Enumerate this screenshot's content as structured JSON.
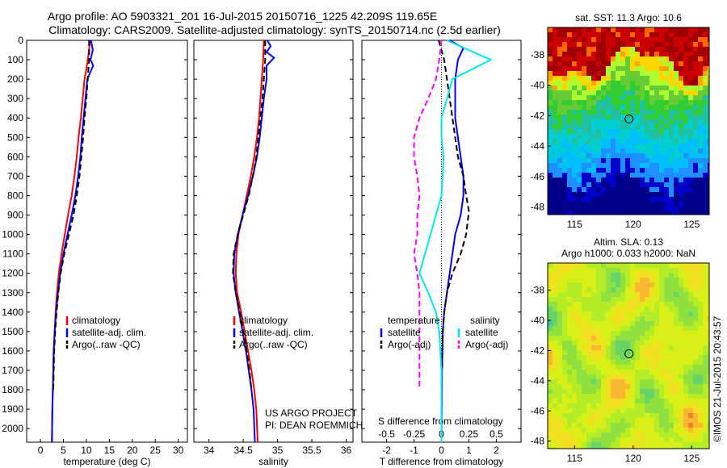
{
  "header": {
    "line1": "Argo profile: AO 5903321_201 16-Jul-2015 20150716_1225 42.209S 119.65E",
    "line2": "Climatology: CARS2009. Satellite-adjusted climatology: synTS_20150714.nc (2.5d earlier)"
  },
  "credits": {
    "project": "US ARGO PROJECT",
    "pi": "PI: DEAN ROEMMICH"
  },
  "stamp": "©IMOS 21-Jul-2015 20:43:57",
  "colors": {
    "climatology": "#ff0000",
    "satellite": "#0000ff",
    "argo": "#000000",
    "sat_salinity": "#00e5ee",
    "argo_salinity": "#ff00ff"
  },
  "chart_data": [
    {
      "type": "line",
      "xlabel": "temperature (deg C)",
      "xticks": [
        0,
        5,
        10,
        15,
        20,
        25,
        30
      ],
      "xlim": [
        -3,
        32
      ],
      "ylabel": "",
      "yticks": [
        0,
        100,
        200,
        300,
        400,
        500,
        600,
        700,
        800,
        900,
        1000,
        1100,
        1200,
        1300,
        1400,
        1500,
        1600,
        1700,
        1800,
        1900,
        2000
      ],
      "ylim": [
        2070,
        0
      ],
      "legend": [
        "climatology",
        "satellite-adj. clim.",
        "Argo(..raw -QC)"
      ],
      "series": [
        {
          "name": "climatology",
          "color": "#ff0000",
          "style": "solid",
          "points": [
            [
              10.8,
              0
            ],
            [
              10.6,
              50
            ],
            [
              10.3,
              100
            ],
            [
              10.0,
              150
            ],
            [
              9.6,
              200
            ],
            [
              9.2,
              300
            ],
            [
              8.8,
              400
            ],
            [
              8.3,
              500
            ],
            [
              7.9,
              600
            ],
            [
              7.4,
              700
            ],
            [
              6.8,
              800
            ],
            [
              6.0,
              900
            ],
            [
              5.3,
              1000
            ],
            [
              4.6,
              1100
            ],
            [
              4.0,
              1200
            ],
            [
              3.6,
              1300
            ],
            [
              3.3,
              1400
            ],
            [
              3.1,
              1500
            ],
            [
              2.9,
              1600
            ],
            [
              2.8,
              1700
            ],
            [
              2.7,
              1800
            ],
            [
              2.6,
              1900
            ],
            [
              2.5,
              2070
            ]
          ]
        },
        {
          "name": "satellite-adj. clim.",
          "color": "#0000ff",
          "style": "solid",
          "points": [
            [
              11.0,
              0
            ],
            [
              11.4,
              50
            ],
            [
              10.9,
              100
            ],
            [
              11.5,
              130
            ],
            [
              10.2,
              200
            ],
            [
              9.8,
              300
            ],
            [
              9.4,
              400
            ],
            [
              9.0,
              500
            ],
            [
              8.7,
              600
            ],
            [
              8.2,
              700
            ],
            [
              7.6,
              800
            ],
            [
              6.8,
              900
            ],
            [
              5.9,
              1000
            ],
            [
              5.0,
              1100
            ],
            [
              4.3,
              1200
            ],
            [
              3.8,
              1300
            ],
            [
              3.4,
              1400
            ],
            [
              3.1,
              1500
            ],
            [
              2.9,
              1600
            ],
            [
              2.8,
              1700
            ],
            [
              2.7,
              1800
            ],
            [
              2.6,
              1900
            ],
            [
              2.5,
              2070
            ]
          ]
        },
        {
          "name": "Argo(..raw -QC)",
          "color": "#000000",
          "style": "dashed",
          "points": [
            [
              10.6,
              0
            ],
            [
              10.6,
              100
            ],
            [
              10.3,
              200
            ],
            [
              10.0,
              300
            ],
            [
              9.6,
              400
            ],
            [
              9.3,
              500
            ],
            [
              8.9,
              600
            ],
            [
              8.5,
              700
            ],
            [
              7.9,
              800
            ],
            [
              7.2,
              900
            ],
            [
              6.2,
              1000
            ],
            [
              5.2,
              1100
            ],
            [
              4.4,
              1200
            ],
            [
              3.9,
              1300
            ],
            [
              3.5,
              1400
            ],
            [
              3.2,
              1500
            ],
            [
              3.0,
              1600
            ],
            [
              2.9,
              1700
            ],
            [
              2.8,
              1800
            ]
          ]
        }
      ]
    },
    {
      "type": "line",
      "xlabel": "salinity",
      "xticks": [
        34,
        34.5,
        35,
        35.5,
        36
      ],
      "xlim": [
        33.78,
        36.1
      ],
      "yticks": [
        0,
        100,
        200,
        300,
        400,
        500,
        600,
        700,
        800,
        900,
        1000,
        1100,
        1200,
        1300,
        1400,
        1500,
        1600,
        1700,
        1800,
        1900,
        2000
      ],
      "ylim": [
        2070,
        0
      ],
      "legend": [
        "climatology",
        "satellite-adj. clim.",
        "Argo(..raw -QC)"
      ],
      "series": [
        {
          "name": "climatology",
          "color": "#ff0000",
          "style": "solid",
          "points": [
            [
              34.8,
              0
            ],
            [
              34.79,
              100
            ],
            [
              34.77,
              200
            ],
            [
              34.75,
              300
            ],
            [
              34.73,
              400
            ],
            [
              34.7,
              500
            ],
            [
              34.66,
              600
            ],
            [
              34.61,
              700
            ],
            [
              34.55,
              800
            ],
            [
              34.49,
              900
            ],
            [
              34.43,
              1000
            ],
            [
              34.4,
              1100
            ],
            [
              34.39,
              1200
            ],
            [
              34.41,
              1300
            ],
            [
              34.47,
              1400
            ],
            [
              34.52,
              1500
            ],
            [
              34.57,
              1600
            ],
            [
              34.62,
              1700
            ],
            [
              34.66,
              1800
            ],
            [
              34.69,
              1900
            ],
            [
              34.71,
              2070
            ]
          ]
        },
        {
          "name": "satellite-adj. clim.",
          "color": "#0000ff",
          "style": "solid",
          "points": [
            [
              34.85,
              0
            ],
            [
              34.9,
              30
            ],
            [
              34.84,
              60
            ],
            [
              34.95,
              90
            ],
            [
              34.84,
              130
            ],
            [
              34.84,
              200
            ],
            [
              34.8,
              300
            ],
            [
              34.77,
              400
            ],
            [
              34.74,
              500
            ],
            [
              34.7,
              600
            ],
            [
              34.64,
              700
            ],
            [
              34.57,
              800
            ],
            [
              34.49,
              900
            ],
            [
              34.42,
              1000
            ],
            [
              34.37,
              1100
            ],
            [
              34.36,
              1200
            ],
            [
              34.39,
              1300
            ],
            [
              34.44,
              1400
            ],
            [
              34.49,
              1500
            ],
            [
              34.54,
              1600
            ],
            [
              34.58,
              1700
            ],
            [
              34.62,
              1800
            ],
            [
              34.65,
              1900
            ],
            [
              34.67,
              2070
            ]
          ]
        },
        {
          "name": "Argo(..raw -QC)",
          "color": "#000000",
          "style": "dashed",
          "points": [
            [
              34.82,
              0
            ],
            [
              34.82,
              100
            ],
            [
              34.8,
              200
            ],
            [
              34.78,
              300
            ],
            [
              34.75,
              400
            ],
            [
              34.72,
              500
            ],
            [
              34.69,
              600
            ],
            [
              34.64,
              700
            ],
            [
              34.58,
              800
            ],
            [
              34.5,
              900
            ],
            [
              34.42,
              1000
            ],
            [
              34.36,
              1100
            ],
            [
              34.35,
              1200
            ],
            [
              34.39,
              1300
            ],
            [
              34.45,
              1400
            ],
            [
              34.5,
              1500
            ],
            [
              34.55,
              1600
            ],
            [
              34.59,
              1700
            ],
            [
              34.62,
              1800
            ]
          ]
        }
      ]
    },
    {
      "type": "line",
      "xlabel": "T difference from climatology",
      "xlabel_top": "S difference from climatology",
      "xticks": [
        -2,
        -1,
        0,
        1,
        2
      ],
      "xticks_top": [
        "-0.5",
        "-0.25",
        "0",
        "0.25",
        "0.5"
      ],
      "xlim": [
        -2.9,
        2.9
      ],
      "yticks": [
        0,
        100,
        200,
        300,
        400,
        500,
        600,
        700,
        800,
        900,
        1000,
        1100,
        1200,
        1300,
        1400,
        1500,
        1600,
        1700,
        1800,
        1900,
        2000
      ],
      "ylim": [
        2070,
        0
      ],
      "legend_groups": [
        {
          "title": "temperature",
          "items": [
            "satellite",
            "Argo(-adj)"
          ]
        },
        {
          "title": "salinity",
          "items": [
            "satellite",
            "Argo(-adj)"
          ]
        }
      ],
      "series": [
        {
          "name": "satellite",
          "group": "temperature",
          "color": "#0000ff",
          "style": "solid",
          "points": [
            [
              0.3,
              0
            ],
            [
              0.8,
              40
            ],
            [
              0.6,
              100
            ],
            [
              0.5,
              200
            ],
            [
              0.5,
              300
            ],
            [
              0.5,
              400
            ],
            [
              0.6,
              500
            ],
            [
              0.7,
              600
            ],
            [
              0.8,
              700
            ],
            [
              0.8,
              800
            ],
            [
              0.7,
              900
            ],
            [
              0.5,
              1000
            ],
            [
              0.4,
              1100
            ],
            [
              0.3,
              1200
            ],
            [
              0.2,
              1300
            ],
            [
              0.1,
              1400
            ],
            [
              0.05,
              1500
            ],
            [
              0.02,
              1700
            ],
            [
              0.0,
              2070
            ]
          ]
        },
        {
          "name": "Argo(-adj)",
          "group": "temperature",
          "color": "#000000",
          "style": "dashed",
          "points": [
            [
              -0.1,
              0
            ],
            [
              0.1,
              100
            ],
            [
              0.2,
              200
            ],
            [
              0.3,
              300
            ],
            [
              0.4,
              400
            ],
            [
              0.5,
              500
            ],
            [
              0.6,
              600
            ],
            [
              0.8,
              700
            ],
            [
              0.9,
              800
            ],
            [
              1.0,
              880
            ],
            [
              0.9,
              1000
            ],
            [
              0.7,
              1100
            ],
            [
              0.4,
              1200
            ],
            [
              0.2,
              1300
            ],
            [
              0.1,
              1400
            ],
            [
              0.05,
              1500
            ],
            [
              0.02,
              1700
            ]
          ]
        },
        {
          "name": "satellite",
          "group": "salinity",
          "color": "#00e5ee",
          "style": "solid",
          "points": [
            [
              0.05,
              0
            ],
            [
              0.45,
              100
            ],
            [
              0.1,
              200
            ],
            [
              0.05,
              300
            ],
            [
              0.0,
              400
            ],
            [
              0.0,
              500
            ],
            [
              0.02,
              600
            ],
            [
              0.01,
              700
            ],
            [
              0.0,
              800
            ],
            [
              -0.05,
              900
            ],
            [
              -0.1,
              1000
            ],
            [
              -0.15,
              1100
            ],
            [
              -0.2,
              1200
            ],
            [
              -0.12,
              1300
            ],
            [
              -0.05,
              1400
            ],
            [
              -0.02,
              1500
            ],
            [
              0.0,
              1700
            ],
            [
              0.0,
              2070
            ]
          ]
        },
        {
          "name": "Argo(-adj)",
          "group": "salinity",
          "color": "#ff00ff",
          "style": "dashed",
          "points": [
            [
              0.0,
              0
            ],
            [
              -0.02,
              100
            ],
            [
              -0.05,
              200
            ],
            [
              -0.12,
              300
            ],
            [
              -0.2,
              400
            ],
            [
              -0.25,
              500
            ],
            [
              -0.25,
              600
            ],
            [
              -0.22,
              700
            ],
            [
              -0.2,
              800
            ],
            [
              -0.22,
              900
            ],
            [
              -0.22,
              1000
            ],
            [
              -0.25,
              1100
            ],
            [
              -0.22,
              1200
            ],
            [
              -0.2,
              1300
            ],
            [
              -0.2,
              1400
            ],
            [
              -0.2,
              1500
            ],
            [
              -0.2,
              1600
            ],
            [
              -0.2,
              1700
            ],
            [
              -0.2,
              1800
            ]
          ]
        }
      ]
    },
    {
      "type": "heatmap",
      "title": "sat. SST: 11.3  Argo: 10.6",
      "xticks": [
        115,
        120,
        125
      ],
      "yticks": [
        -38,
        -40,
        -42,
        -44,
        -46,
        -48
      ],
      "xlim": [
        112.7,
        126.5
      ],
      "ylim": [
        -48.5,
        -36.2
      ],
      "profile_location": [
        119.65,
        -42.209
      ],
      "cell_colors": [
        "#00008b",
        "#0000cd",
        "#1e90ff",
        "#00bfff",
        "#00ced1",
        "#20c0a0",
        "#32cd32",
        "#66cc33",
        "#adff2f",
        "#ffd700",
        "#ffa500",
        "#ff6600",
        "#cc0000",
        "#a00000"
      ]
    },
    {
      "type": "heatmap",
      "title": "Altim. SLA: 0.13",
      "subtitle": "Argo h1000: 0.033 h2000: NaN",
      "xticks": [
        115,
        120,
        125
      ],
      "yticks": [
        -38,
        -40,
        -42,
        -44,
        -46,
        -48
      ],
      "xlim": [
        112.7,
        126.5
      ],
      "ylim": [
        -48.5,
        -36.2
      ],
      "profile_location": [
        119.65,
        -42.209
      ],
      "cell_colors": [
        "#3cc8a0",
        "#66d466",
        "#90e040",
        "#b4ec28",
        "#d8f018",
        "#f0e020",
        "#f8b830",
        "#f08030"
      ]
    }
  ]
}
